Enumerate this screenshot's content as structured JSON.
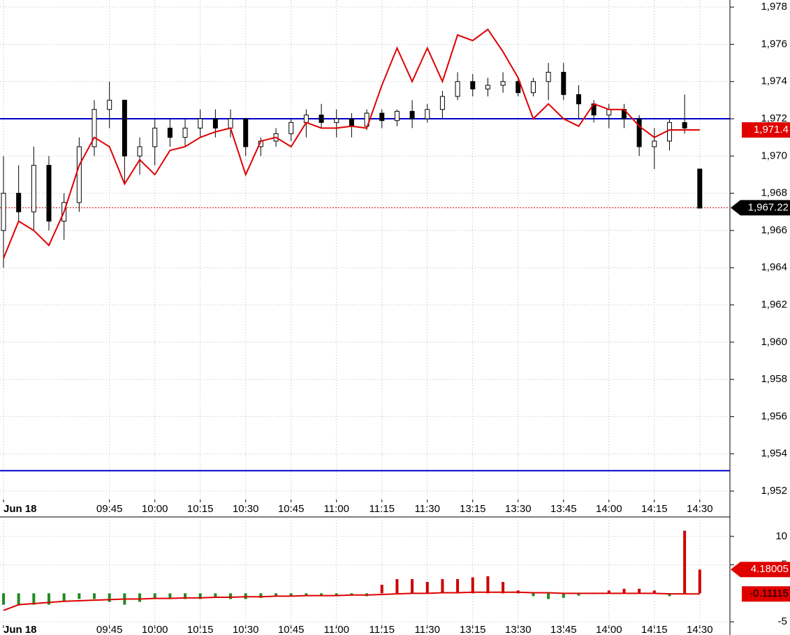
{
  "chart_data": [
    {
      "type": "candlestick",
      "ohlc": [
        [
          1966,
          1970,
          1964,
          1968
        ],
        [
          1968,
          1969.5,
          1966.5,
          1967
        ],
        [
          1967,
          1970.5,
          1966,
          1969.5
        ],
        [
          1969.5,
          1970,
          1966,
          1966.5
        ],
        [
          1966.5,
          1968,
          1965.5,
          1967.5
        ],
        [
          1967.5,
          1971,
          1967,
          1970.5
        ],
        [
          1970.5,
          1973,
          1970,
          1972.5
        ],
        [
          1972.5,
          1974,
          1971.5,
          1973
        ],
        [
          1973,
          1973,
          1968.5,
          1970
        ],
        [
          1970,
          1971,
          1969,
          1970.5
        ],
        [
          1970.5,
          1972,
          1969.5,
          1971.5
        ],
        [
          1971.5,
          1972,
          1970.5,
          1971
        ],
        [
          1971,
          1972,
          1970.5,
          1971.5
        ],
        [
          1971.5,
          1972.5,
          1971,
          1972
        ],
        [
          1972,
          1972.5,
          1971,
          1971.5
        ],
        [
          1971.5,
          1972.5,
          1971,
          1972
        ],
        [
          1972,
          1972,
          1970,
          1970.5
        ],
        [
          1970.5,
          1971,
          1970,
          1970.8
        ],
        [
          1970.8,
          1971.5,
          1970.5,
          1971.2
        ],
        [
          1971.2,
          1972,
          1970.8,
          1971.8
        ],
        [
          1971.8,
          1972.5,
          1971,
          1972.2
        ],
        [
          1972.2,
          1972.8,
          1971.5,
          1971.8
        ],
        [
          1971.8,
          1972.5,
          1971,
          1972
        ],
        [
          1972,
          1972.3,
          1971,
          1971.6
        ],
        [
          1971.6,
          1972.5,
          1971.4,
          1972.3
        ],
        [
          1972.3,
          1972.5,
          1971.5,
          1971.9
        ],
        [
          1971.9,
          1972.5,
          1971.6,
          1972.4
        ],
        [
          1972.4,
          1973,
          1971.5,
          1972
        ],
        [
          1972,
          1972.8,
          1971.8,
          1972.5
        ],
        [
          1972.5,
          1973.5,
          1972,
          1973.2
        ],
        [
          1973.2,
          1974.5,
          1973,
          1974
        ],
        [
          1974,
          1974.4,
          1973.2,
          1973.6
        ],
        [
          1973.6,
          1974.2,
          1973.2,
          1973.8
        ],
        [
          1973.8,
          1974.5,
          1973.4,
          1974
        ],
        [
          1974,
          1974.2,
          1973.2,
          1973.4
        ],
        [
          1973.4,
          1974.2,
          1973.2,
          1974
        ],
        [
          1974,
          1975,
          1973,
          1974.5
        ],
        [
          1974.5,
          1975,
          1973,
          1973.3
        ],
        [
          1973.3,
          1973.8,
          1972,
          1972.8
        ],
        [
          1972.8,
          1973,
          1971.8,
          1972.2
        ],
        [
          1972.2,
          1972.8,
          1971.5,
          1972.5
        ],
        [
          1972.5,
          1972.8,
          1971.5,
          1972
        ],
        [
          1972,
          1972.2,
          1970,
          1970.5
        ],
        [
          1970.5,
          1971.5,
          1969.3,
          1970.8
        ],
        [
          1970.8,
          1972,
          1970.3,
          1971.8
        ],
        [
          1971.8,
          1973.3,
          1971.2,
          1971.5
        ],
        [
          1969.3,
          1969.3,
          1967.2,
          1967.2
        ]
      ],
      "series": [
        {
          "type": "line",
          "color": "#dd0000",
          "values": [
            1964.5,
            1966.5,
            1966,
            1965.2,
            1967,
            1969.5,
            1971,
            1970.5,
            1968.5,
            1969.8,
            1969,
            1970.3,
            1970.5,
            1971,
            1971.3,
            1971.5,
            1969,
            1970.8,
            1971,
            1970.5,
            1971.8,
            1971.5,
            1971.5,
            1971.6,
            1971.5,
            1973.8,
            1975.8,
            1974,
            1975.8,
            1974,
            1976.5,
            1976.2,
            1976.8,
            1975.6,
            1974.2,
            1972,
            1972.8,
            1972,
            1971.6,
            1972.8,
            1972.5,
            1972.5,
            1971.6,
            1971,
            1971.4,
            1971.4,
            1971.4
          ],
          "value_label": "1,971.4"
        }
      ],
      "hlines": [
        {
          "value": 1972,
          "color": "#0000cc"
        },
        {
          "value": 1953.1,
          "color": "#0000cc"
        }
      ],
      "price_line": {
        "value": 1967.22,
        "label": "1,967.22",
        "color": "#cc0000"
      },
      "ylim": [
        1951.55,
        1978.38
      ],
      "yticks": [
        {
          "value": 1952,
          "label": "1,952"
        },
        {
          "value": 1954,
          "label": "1,954"
        },
        {
          "value": 1956,
          "label": "1,956"
        },
        {
          "value": 1958,
          "label": "1,958"
        },
        {
          "value": 1960,
          "label": "1,960"
        },
        {
          "value": 1962,
          "label": "1,962"
        },
        {
          "value": 1964,
          "label": "1,964"
        },
        {
          "value": 1966,
          "label": "1,966"
        },
        {
          "value": 1968,
          "label": "1,968"
        },
        {
          "value": 1970,
          "label": "1,970"
        },
        {
          "value": 1972,
          "label": "1,972"
        },
        {
          "value": 1974,
          "label": "1,974"
        },
        {
          "value": 1976,
          "label": "1,976"
        },
        {
          "value": 1978,
          "label": "1,978"
        }
      ],
      "xticks": [
        {
          "value": 0,
          "label": "Jun 18"
        },
        {
          "value": 7,
          "label": "09:45"
        },
        {
          "value": 10,
          "label": "10:00"
        },
        {
          "value": 13,
          "label": "10:15"
        },
        {
          "value": 16,
          "label": "10:30"
        },
        {
          "value": 19,
          "label": "10:45"
        },
        {
          "value": 22,
          "label": "11:00"
        },
        {
          "value": 25,
          "label": "11:15"
        },
        {
          "value": 28,
          "label": "11:30"
        },
        {
          "value": 31,
          "label": "13:15"
        },
        {
          "value": 34,
          "label": "13:30"
        },
        {
          "value": 37,
          "label": "13:45"
        },
        {
          "value": 40,
          "label": "14:00"
        },
        {
          "value": 43,
          "label": "14:15"
        },
        {
          "value": 46,
          "label": "14:30"
        }
      ],
      "grid": true
    },
    {
      "type": "histogram",
      "series": [
        {
          "type": "bar",
          "color": "#cc0000",
          "negative_color": "#228b22",
          "values": [
            -2,
            -2,
            -2,
            -2,
            -1.5,
            -1,
            -1,
            -1.5,
            -2,
            -1.5,
            -1,
            -1,
            -1,
            -1,
            -0.8,
            -1,
            -1,
            -0.8,
            -0.5,
            -0.5,
            -0.5,
            -0.4,
            -0.4,
            -0.4,
            -0.5,
            1.5,
            2.5,
            2.5,
            2,
            2.5,
            2.5,
            2.8,
            3,
            2,
            0.5,
            -0.5,
            -1,
            -0.8,
            -0.4,
            0,
            0.5,
            0.8,
            0.8,
            0.5,
            -0.5,
            11,
            4.18005
          ],
          "value_label": "4.18005"
        },
        {
          "type": "line",
          "color": "#dd0000",
          "values": [
            -3,
            -2,
            -1.8,
            -1.6,
            -1.4,
            -1.3,
            -1.2,
            -1.1,
            -1,
            -1,
            -0.9,
            -0.9,
            -0.8,
            -0.8,
            -0.7,
            -0.7,
            -0.6,
            -0.6,
            -0.5,
            -0.5,
            -0.4,
            -0.4,
            -0.4,
            -0.3,
            -0.3,
            -0.2,
            -0.1,
            0,
            0,
            0.1,
            0.1,
            0.2,
            0.2,
            0.2,
            0.2,
            0.1,
            0.1,
            0,
            0,
            0,
            0,
            0,
            0,
            0,
            -0.1,
            -0.1,
            -0.11115
          ],
          "value_label": "-0.11115"
        }
      ],
      "ylim": [
        -5.6,
        12.8
      ],
      "yticks": [
        -5,
        5,
        10
      ],
      "xticks": [
        {
          "value": 0,
          "label": "Jun 18"
        },
        {
          "value": 7,
          "label": "09:45"
        },
        {
          "value": 10,
          "label": "10:00"
        },
        {
          "value": 13,
          "label": "10:15"
        },
        {
          "value": 16,
          "label": "10:30"
        },
        {
          "value": 19,
          "label": "10:45"
        },
        {
          "value": 22,
          "label": "11:00"
        },
        {
          "value": 25,
          "label": "11:15"
        },
        {
          "value": 28,
          "label": "11:30"
        },
        {
          "value": 31,
          "label": "13:15"
        },
        {
          "value": 34,
          "label": "13:30"
        },
        {
          "value": 37,
          "label": "13:45"
        },
        {
          "value": 40,
          "label": "14:00"
        },
        {
          "value": 43,
          "label": "14:15"
        },
        {
          "value": 46,
          "label": "14:30"
        }
      ],
      "grid": true
    }
  ]
}
